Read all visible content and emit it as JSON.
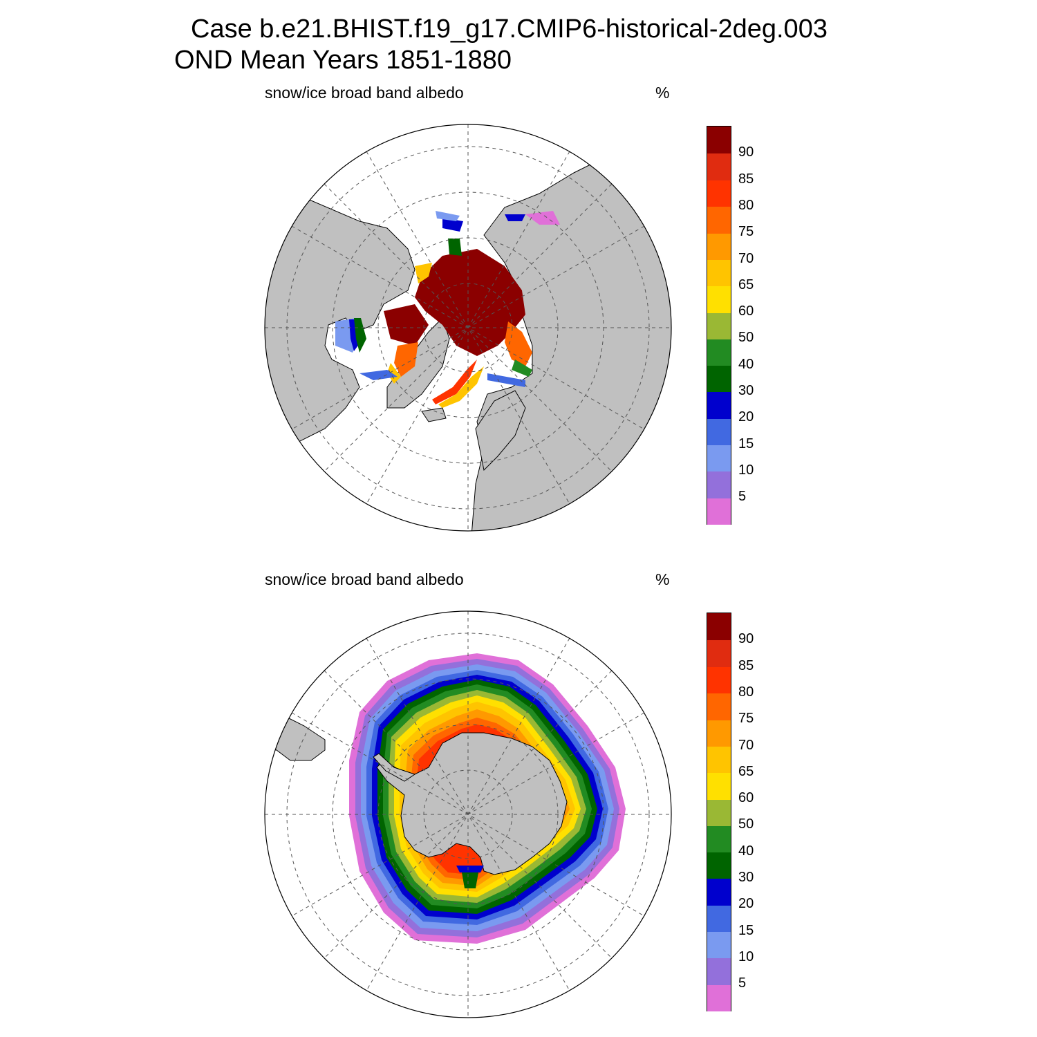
{
  "figure": {
    "title_line1": "Case b.e21.BHIST.f19_g17.CMIP6-historical-2deg.003",
    "title_line2": "OND Mean   Years 1851-1880"
  },
  "palette": {
    "land": "#c0c0c0",
    "ocean": "#ffffff",
    "colors": [
      "#e070d8",
      "#9370db",
      "#7a9af0",
      "#4169e1",
      "#0000cd",
      "#006400",
      "#228b22",
      "#9ab834",
      "#ffe000",
      "#ffc400",
      "#ff9900",
      "#ff6600",
      "#ff3300",
      "#e02c10",
      "#8b0000"
    ],
    "levels": [
      "5",
      "10",
      "15",
      "20",
      "30",
      "40",
      "50",
      "60",
      "65",
      "70",
      "75",
      "80",
      "85",
      "90"
    ]
  },
  "panels": [
    {
      "id": "north",
      "label": "snow/ice broad band albedo",
      "units": "%",
      "region": "Arctic",
      "pole_value_approx": 95
    },
    {
      "id": "south",
      "label": "snow/ice broad band albedo",
      "units": "%",
      "region": "Antarctic",
      "ring_inner_value_approx": 85,
      "ring_outer_value_approx": 5
    }
  ],
  "chart_data": {
    "type": "heatmap",
    "projection": "polar stereographic",
    "variable": "snow/ice broad band albedo",
    "units": "%",
    "contour_levels": [
      5,
      10,
      15,
      20,
      30,
      40,
      50,
      60,
      65,
      70,
      75,
      80,
      85,
      90
    ]
  }
}
